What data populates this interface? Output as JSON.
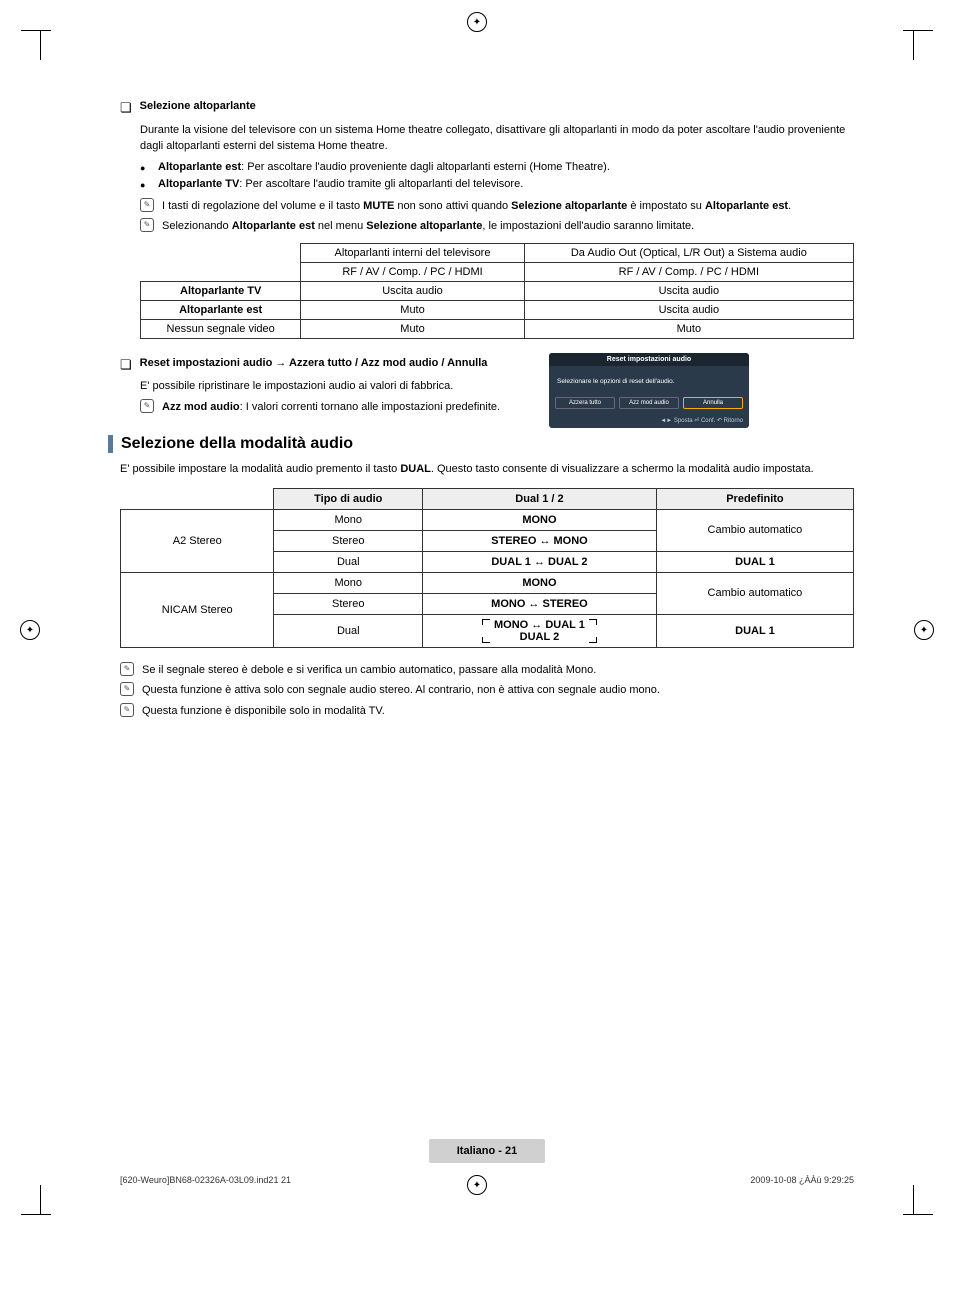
{
  "section1": {
    "title": "Selezione altoparlante",
    "intro": "Durante la visione del televisore con un sistema Home theatre collegato, disattivare gli altoparlanti in modo da poter ascoltare l'audio proveniente dagli altoparlanti esterni del sistema Home theatre.",
    "bullets": [
      {
        "label": "Altoparlante est",
        "text": ": Per ascoltare l'audio proveniente dagli altoparlanti esterni (Home Theatre)."
      },
      {
        "label": "Altoparlante TV",
        "text": ": Per ascoltare l'audio tramite gli altoparlanti del televisore."
      }
    ],
    "note1": {
      "pre": "I tasti di regolazione del volume e il tasto ",
      "b1": "MUTE",
      "mid": " non sono attivi quando ",
      "b2": "Selezione altoparlante",
      "mid2": " è impostato su ",
      "b3": "Altoparlante est",
      "post": "."
    },
    "note2": {
      "pre": "Selezionando ",
      "b1": "Altoparlante est",
      "mid": " nel menu ",
      "b2": "Selezione altoparlante",
      "post": ", le impostazioni dell'audio saranno limitate."
    },
    "table1": {
      "headers": [
        "",
        "Altoparlanti interni del televisore",
        "Da Audio Out (Optical, L/R Out) a Sistema audio"
      ],
      "sub": [
        "",
        "RF / AV / Comp. / PC / HDMI",
        "RF / AV / Comp. / PC / HDMI"
      ],
      "rows": [
        [
          "Altoparlante TV",
          "Uscita audio",
          "Uscita audio"
        ],
        [
          "Altoparlante est",
          "Muto",
          "Uscita audio"
        ],
        [
          "Nessun segnale video",
          "Muto",
          "Muto"
        ]
      ]
    }
  },
  "section2": {
    "title_pre": "Reset impostazioni audio → ",
    "title_post": "Azzera tutto / Azz mod audio / Annulla",
    "line1": "E' possibile ripristinare le impostazioni audio ai valori di fabbrica.",
    "note": {
      "b": "Azz mod audio",
      "text": ": I valori correnti tornano alle impostazioni predefinite."
    }
  },
  "osd": {
    "title": "Reset impostazioni audio",
    "body": "Selezionare le opzioni di reset dell'audio.",
    "buttons": [
      "Azzera tutto",
      "Azz mod audio",
      "Annulla"
    ],
    "footer": "◄► Sposta   ⏎ Conf.   ↶ Ritorno"
  },
  "section3": {
    "heading": "Selezione della modalità audio",
    "intro": "E' possibile impostare la modalità audio premento il tasto DUAL. Questo tasto consente di visualizzare a schermo la modalità audio impostata.",
    "intro_pre": "E' possibile impostare la modalità audio premento il tasto ",
    "intro_b": "DUAL",
    "intro_post": ". Questo tasto consente di visualizzare a schermo la modalità audio impostata.",
    "table": {
      "headers": [
        "",
        "Tipo di audio",
        "Dual 1 / 2",
        "Predefinito"
      ],
      "groups": [
        {
          "label": "A2 Stereo",
          "rows": [
            {
              "type": "Mono",
              "dual": "MONO",
              "def": "Cambio automatico",
              "defspan": 2,
              "dualbold": true
            },
            {
              "type": "Stereo",
              "dual": "STEREO ↔ MONO",
              "dualbold": true
            },
            {
              "type": "Dual",
              "dual": "DUAL 1 ↔ DUAL 2",
              "def": "DUAL 1",
              "dualbold": true,
              "defbold": true
            }
          ]
        },
        {
          "label": "NICAM Stereo",
          "rows": [
            {
              "type": "Mono",
              "dual": "MONO",
              "def": "Cambio automatico",
              "defspan": 2,
              "dualbold": true
            },
            {
              "type": "Stereo",
              "dual": "MONO ↔ STEREO",
              "dualbold": true
            },
            {
              "type": "Dual",
              "dual_special": true,
              "line1": "MONO ↔ DUAL 1",
              "line2": "DUAL 2",
              "def": "DUAL 1",
              "defbold": true
            }
          ]
        }
      ]
    },
    "notes": [
      "Se il segnale stereo è debole e si verifica un cambio automatico, passare alla modalità Mono.",
      "Questa funzione è attiva solo con segnale audio stereo. Al contrario, non è attiva con segnale audio mono.",
      "Questa funzione è disponibile solo in modalità TV."
    ]
  },
  "footer": {
    "page": "Italiano - 21",
    "left": "[620-Weuro]BN68-02326A-03L09.ind21   21",
    "right": "2009-10-08   ¿ÀÀü 9:29:25"
  },
  "colors": {
    "bar": "#5a7a9a",
    "osd_bg": "#2b3a4a",
    "osd_title_bg": "#1a2530",
    "pill_bg": "#d0d0d0"
  }
}
